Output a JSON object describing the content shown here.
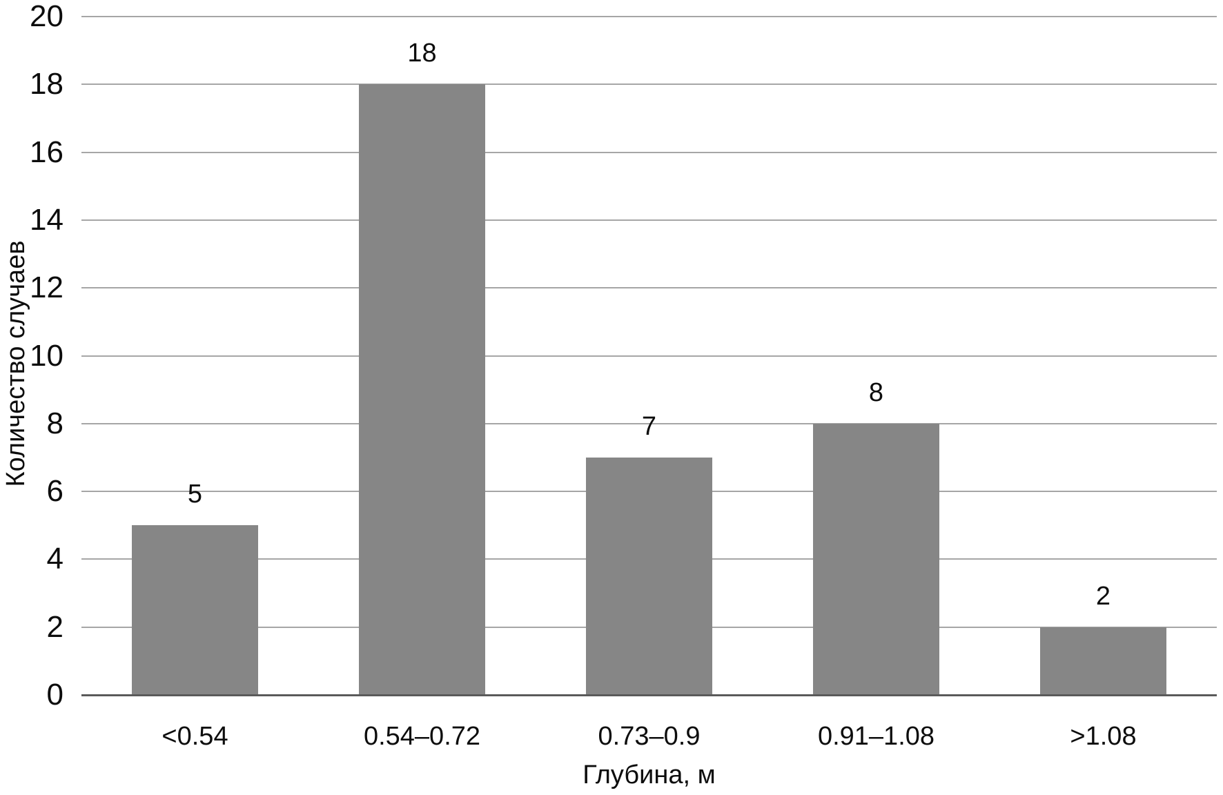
{
  "chart_data": {
    "type": "bar",
    "title": "",
    "categories": [
      "<0.54",
      "0.54–0.72",
      "0.73–0.9",
      "0.91–1.08",
      ">1.08"
    ],
    "values": [
      5,
      18,
      7,
      8,
      2
    ],
    "xlabel": "Глубина, м",
    "ylabel": "Количество случаев",
    "ylim": [
      0,
      20
    ],
    "yticks": [
      0,
      2,
      4,
      6,
      8,
      10,
      12,
      14,
      16,
      18,
      20
    ],
    "grid": true,
    "legend": "none",
    "colors": {
      "bar_fill": "#868686",
      "gridline": "#a6a6a6",
      "axis_line": "#5a5a5a",
      "text": "#0d0d0d",
      "background": "#ffffff"
    }
  }
}
